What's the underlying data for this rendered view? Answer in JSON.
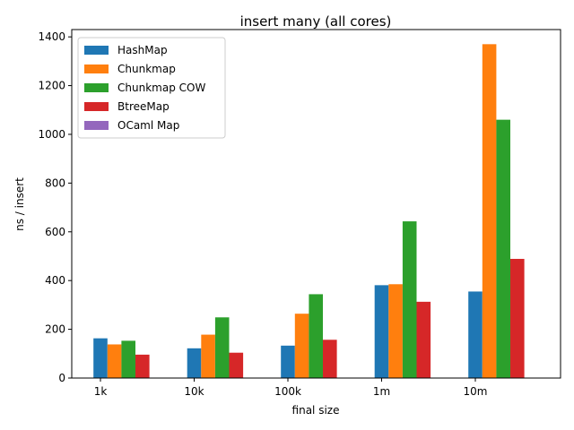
{
  "chart_data": {
    "type": "bar",
    "title": "insert many (all cores)",
    "xlabel": "final size",
    "ylabel": "ns / insert",
    "categories": [
      "1k",
      "10k",
      "100k",
      "1m",
      "10m"
    ],
    "ylim": [
      0,
      1430
    ],
    "yticks": [
      0,
      200,
      400,
      600,
      800,
      1000,
      1200,
      1400
    ],
    "grid": false,
    "legend_position": "top-left",
    "series": [
      {
        "name": "HashMap",
        "color": "#1f77b4",
        "values": [
          163,
          122,
          133,
          381,
          355
        ]
      },
      {
        "name": "Chunkmap",
        "color": "#ff7f0e",
        "values": [
          138,
          178,
          264,
          385,
          1370
        ]
      },
      {
        "name": "Chunkmap COW",
        "color": "#2ca02c",
        "values": [
          153,
          249,
          344,
          643,
          1060
        ]
      },
      {
        "name": "BtreeMap",
        "color": "#d62728",
        "values": [
          96,
          104,
          157,
          313,
          489
        ]
      },
      {
        "name": "OCaml Map",
        "color": "#9467bd",
        "values": [
          0,
          0,
          0,
          0,
          0
        ]
      }
    ]
  }
}
